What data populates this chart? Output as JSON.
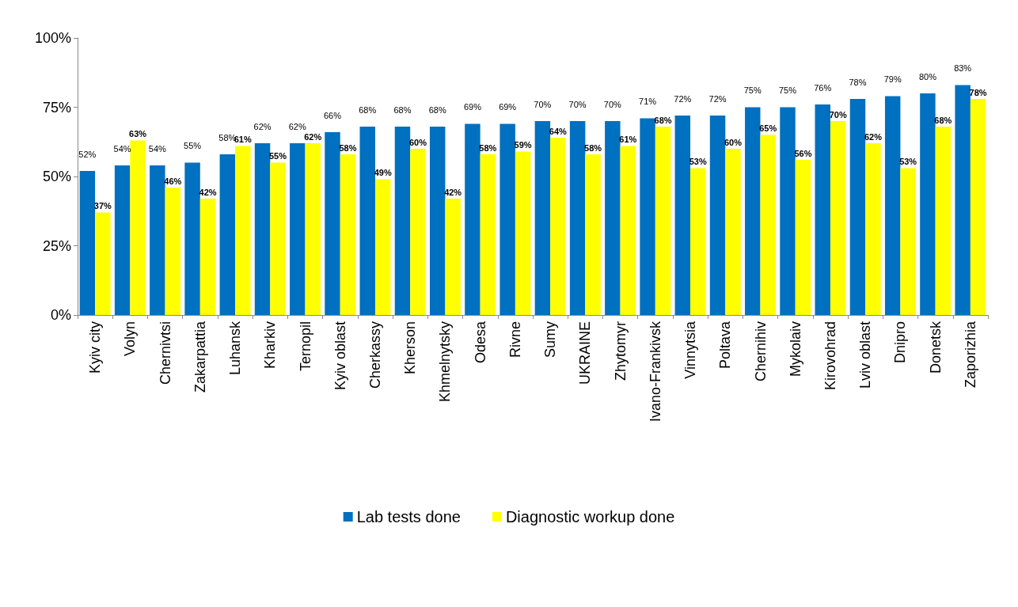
{
  "chart_data": {
    "type": "bar",
    "categories": [
      "Kyiv city",
      "Volyn",
      "Chernivtsi",
      "Zakarpattia",
      "Luhansk",
      "Kharkiv",
      "Ternopil",
      "Kyiv oblast",
      "Cherkassy",
      "Kherson",
      "Khmelnytsky",
      "Odesa",
      "Rivne",
      "Sumy",
      "UKRAINE",
      "Zhytomyr",
      "Ivano-Frankivsk",
      "Vinnytsia",
      "Poltava",
      "Chernihiv",
      "Mykolaiv",
      "Kirovohrad",
      "Lviv oblast",
      "Dnipro",
      "Donetsk",
      "Zaporizhia"
    ],
    "series": [
      {
        "name": "Lab tests done",
        "color": "#0070c0",
        "values": [
          52,
          54,
          54,
          55,
          58,
          62,
          62,
          66,
          68,
          68,
          68,
          69,
          69,
          70,
          70,
          70,
          71,
          72,
          72,
          75,
          75,
          76,
          78,
          79,
          80,
          83
        ],
        "value_labels": [
          "52%",
          "54%",
          "54%",
          "55%",
          "58%",
          "62%",
          "62%",
          "66%",
          "68%",
          "68%",
          "68%",
          "69%",
          "69%",
          "70%",
          "70%",
          "70%",
          "71%",
          "72%",
          "72%",
          "75%",
          "75%",
          "76%",
          "78%",
          "79%",
          "80%",
          "83%"
        ]
      },
      {
        "name": "Diagnostic workup done",
        "color": "#ffff00",
        "values": [
          37,
          63,
          46,
          42,
          61,
          55,
          62,
          58,
          49,
          60,
          42,
          58,
          59,
          64,
          58,
          61,
          68,
          53,
          60,
          65,
          56,
          70,
          62,
          53,
          68,
          78
        ],
        "value_labels": [
          "37%",
          "63%",
          "46%",
          "42%",
          "61%",
          "55%",
          "62%",
          "58%",
          "49%",
          "60%",
          "42%",
          "58%",
          "59%",
          "64%",
          "58%",
          "61%",
          "68%",
          "53%",
          "60%",
          "65%",
          "56%",
          "70%",
          "62%",
          "53%",
          "68%",
          "78%"
        ]
      }
    ],
    "ylim": [
      0,
      100
    ],
    "yticks": [
      {
        "value": 0,
        "label": "0%"
      },
      {
        "value": 25,
        "label": "25%"
      },
      {
        "value": 50,
        "label": "50%"
      },
      {
        "value": 75,
        "label": "75%"
      },
      {
        "value": 100,
        "label": "100%"
      }
    ],
    "grid": false,
    "legend": "bottom"
  }
}
